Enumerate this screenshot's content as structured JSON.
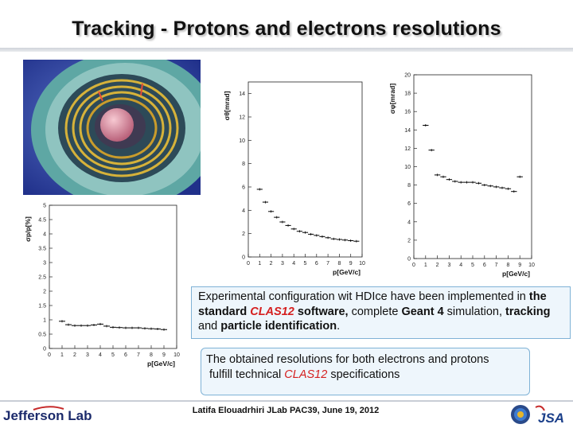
{
  "slide": {
    "title": "Tracking - Protons and electrons resolutions",
    "box1": {
      "p1": "Experimental configuration wit HDIce have been implemented in ",
      "p2": "the standard ",
      "p3": "CLAS12",
      "p4": " software,",
      "p5": " complete ",
      "p6": "Geant 4",
      "p7": " simulation, ",
      "p8": "tracking",
      "p9": " and ",
      "p10": "particle identification",
      "p11": "."
    },
    "box2": {
      "p1": "The obtained resolutions for both electrons and protons",
      "p2": "fulfill technical ",
      "p3": "CLAS12",
      "p4": " specifications"
    },
    "footer": {
      "caption": "Latifa Elouadrhiri  JLab PAC39, June 19, 2012",
      "logo_text": "Jefferson Lab",
      "sponsor_text": "JSA"
    },
    "colors": {
      "accent_red": "#d51f1f",
      "box_fill": "#eef6fc",
      "box_border": "#7fb2d6"
    },
    "icons": [
      "detector-image",
      "jefferson-lab-logo",
      "doe-seal-icon",
      "jsa-logo-icon"
    ]
  },
  "chart_data": [
    {
      "type": "scatter",
      "id": "sigma-p",
      "xlabel": "p[GeV/c]",
      "ylabel": "σp/p[%]",
      "xlim": [
        0,
        10
      ],
      "ylim": [
        0,
        5
      ],
      "xticks": [
        "0",
        "1",
        "2",
        "3",
        "4",
        "5",
        "6",
        "7",
        "8",
        "9",
        "10"
      ],
      "yticks": [
        "0",
        "0.5",
        "1",
        "1.5",
        "2",
        "2.5",
        "3",
        "3.5",
        "4",
        "4.5",
        "5"
      ],
      "x": [
        1.0,
        1.5,
        2.0,
        2.5,
        3.0,
        3.5,
        4.0,
        4.5,
        5.0,
        5.5,
        6.0,
        6.5,
        7.0,
        7.5,
        8.0,
        8.5,
        9.0
      ],
      "y": [
        0.95,
        0.83,
        0.8,
        0.8,
        0.8,
        0.82,
        0.85,
        0.78,
        0.74,
        0.73,
        0.72,
        0.72,
        0.72,
        0.7,
        0.69,
        0.68,
        0.66
      ]
    },
    {
      "type": "scatter",
      "id": "sigma-theta",
      "xlabel": "p[GeV/c]",
      "ylabel": "σθ[mrad]",
      "xlim": [
        0,
        10
      ],
      "ylim": [
        0,
        15
      ],
      "xticks": [
        "0",
        "1",
        "2",
        "3",
        "4",
        "5",
        "6",
        "7",
        "8",
        "9",
        "10"
      ],
      "yticks": [
        "0",
        "2",
        "4",
        "6",
        "8",
        "10",
        "12",
        "14"
      ],
      "x": [
        1.0,
        1.5,
        2.0,
        2.5,
        3.0,
        3.5,
        4.0,
        4.5,
        5.0,
        5.5,
        6.0,
        6.5,
        7.0,
        7.5,
        8.0,
        8.5,
        9.0,
        9.5
      ],
      "y": [
        5.8,
        4.7,
        3.9,
        3.4,
        3.0,
        2.7,
        2.4,
        2.2,
        2.1,
        1.95,
        1.85,
        1.75,
        1.65,
        1.55,
        1.5,
        1.45,
        1.4,
        1.35
      ]
    },
    {
      "type": "scatter",
      "id": "sigma-phi",
      "xlabel": "p[GeV/c]",
      "ylabel": "σφ[mrad]",
      "xlim": [
        0,
        10
      ],
      "ylim": [
        0,
        20
      ],
      "xticks": [
        "0",
        "1",
        "2",
        "3",
        "4",
        "5",
        "6",
        "7",
        "8",
        "9",
        "10"
      ],
      "yticks": [
        "0",
        "2",
        "4",
        "6",
        "8",
        "10",
        "12",
        "14",
        "16",
        "18",
        "20"
      ],
      "x": [
        1.0,
        1.5,
        2.0,
        2.5,
        3.0,
        3.5,
        4.0,
        4.5,
        5.0,
        5.5,
        6.0,
        6.5,
        7.0,
        7.5,
        8.0,
        8.5,
        9.0
      ],
      "y": [
        14.5,
        11.8,
        9.1,
        8.9,
        8.6,
        8.4,
        8.3,
        8.3,
        8.3,
        8.2,
        8.0,
        7.9,
        7.8,
        7.7,
        7.6,
        7.3,
        8.9
      ]
    }
  ]
}
